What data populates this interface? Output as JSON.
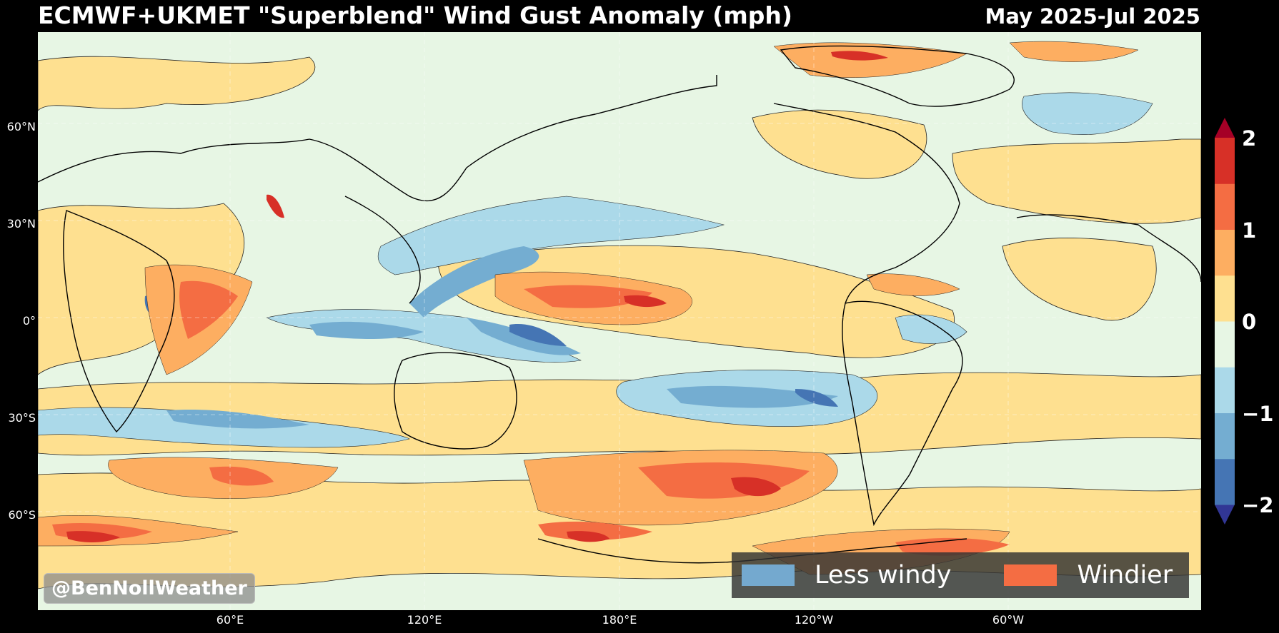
{
  "header": {
    "title": "ECMWF+UKMET \"Superblend\" Wind Gust Anomaly (mph)",
    "period": "May 2025-Jul 2025"
  },
  "axes": {
    "lat_labels": [
      "60°N",
      "30°N",
      "0°",
      "30°S",
      "60°S"
    ],
    "lon_labels": [
      "60°E",
      "120°E",
      "180°E",
      "120°W",
      "60°W"
    ]
  },
  "colorbar": {
    "ticks": [
      "2",
      "1",
      "0",
      "−1",
      "−2"
    ],
    "colors": [
      "#313695",
      "#4575b4",
      "#74add1",
      "#abd9e9",
      "#e7f6e4",
      "#fee090",
      "#fdae61",
      "#f46d43",
      "#d73027",
      "#a50026"
    ]
  },
  "legend": {
    "less_label": "Less windy",
    "less_color": "#74a9cf",
    "more_label": "Windier",
    "more_color": "#f46d43"
  },
  "credit": "@BenNollWeather"
}
